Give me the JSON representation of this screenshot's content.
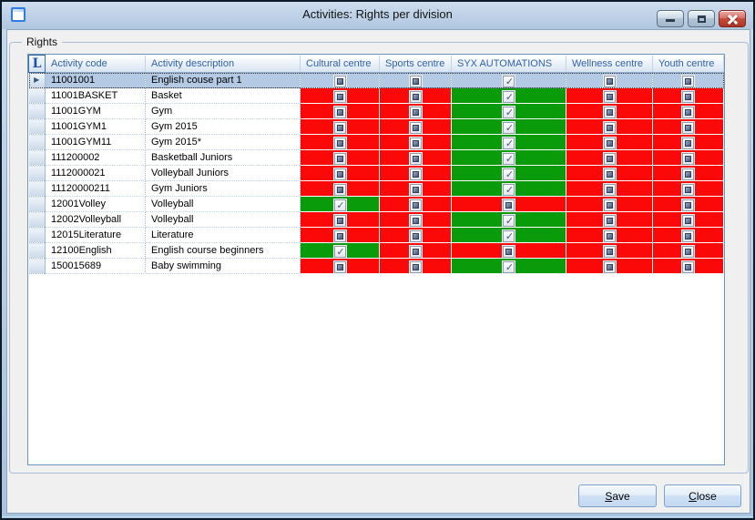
{
  "window": {
    "title": "Activities: Rights per division",
    "controls": {
      "minimize": "minimize",
      "maximize": "maximize",
      "close": "close"
    }
  },
  "group_label": "Rights",
  "grid": {
    "corner_label": "L",
    "columns": [
      "Activity code",
      "Activity description",
      "Cultural centre",
      "Sports centre",
      "SYX AUTOMATIONS",
      "Wellness centre",
      "Youth centre"
    ],
    "division_columns": [
      "Cultural centre",
      "Sports centre",
      "SYX AUTOMATIONS",
      "Wellness centre",
      "Youth centre"
    ],
    "rows": [
      {
        "code": "11001001",
        "description": "English couse part 1",
        "selected": true,
        "rights": [
          false,
          false,
          true,
          false,
          false
        ]
      },
      {
        "code": "11001BASKET",
        "description": "Basket",
        "selected": false,
        "rights": [
          false,
          false,
          true,
          false,
          false
        ]
      },
      {
        "code": "11001GYM",
        "description": "Gym",
        "selected": false,
        "rights": [
          false,
          false,
          true,
          false,
          false
        ]
      },
      {
        "code": "11001GYM1",
        "description": "Gym 2015",
        "selected": false,
        "rights": [
          false,
          false,
          true,
          false,
          false
        ]
      },
      {
        "code": "11001GYM11",
        "description": "Gym 2015*",
        "selected": false,
        "rights": [
          false,
          false,
          true,
          false,
          false
        ]
      },
      {
        "code": "111200002",
        "description": "Basketball Juniors",
        "selected": false,
        "rights": [
          false,
          false,
          true,
          false,
          false
        ]
      },
      {
        "code": "1112000021",
        "description": "Volleyball Juniors",
        "selected": false,
        "rights": [
          false,
          false,
          true,
          false,
          false
        ]
      },
      {
        "code": "11120000211",
        "description": "Gym Juniors",
        "selected": false,
        "rights": [
          false,
          false,
          true,
          false,
          false
        ]
      },
      {
        "code": "12001Volley",
        "description": "Volleyball",
        "selected": false,
        "rights": [
          true,
          false,
          false,
          false,
          false
        ]
      },
      {
        "code": "12002Volleyball",
        "description": "Volleyball",
        "selected": false,
        "rights": [
          false,
          false,
          true,
          false,
          false
        ]
      },
      {
        "code": "12015Literature",
        "description": "Literature",
        "selected": false,
        "rights": [
          false,
          false,
          true,
          false,
          false
        ]
      },
      {
        "code": "12100English",
        "description": "English course beginners",
        "selected": false,
        "rights": [
          true,
          false,
          false,
          false,
          false
        ]
      },
      {
        "code": "150015689",
        "description": "Baby swimming",
        "selected": false,
        "rights": [
          false,
          false,
          true,
          false,
          false
        ]
      }
    ]
  },
  "buttons": {
    "save": "Save",
    "close": "Close"
  },
  "colors": {
    "granted_bg": "#0a9b0a",
    "denied_bg": "#fb0808",
    "selected_row_bg": "#b3c9e4",
    "header_text": "#2e62ad",
    "titlebar_gradient_top": "#cfdeef",
    "close_button_red": "#c64a3a"
  }
}
